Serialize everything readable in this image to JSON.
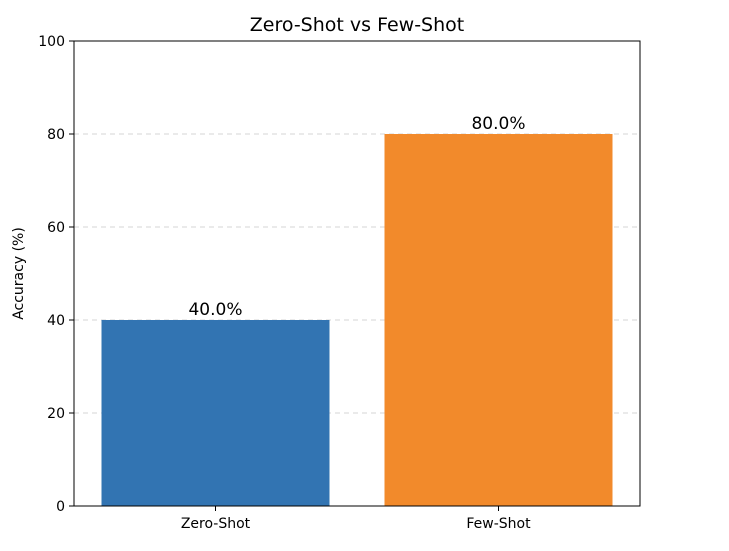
{
  "chart_data": {
    "type": "bar",
    "title": "Zero-Shot vs Few-Shot",
    "xlabel": "",
    "ylabel": "Accuracy (%)",
    "categories": [
      "Zero-Shot",
      "Few-Shot"
    ],
    "values": [
      40.0,
      80.0
    ],
    "value_labels": [
      "40.0%",
      "80.0%"
    ],
    "colors": [
      "#3274b2",
      "#f28a2b"
    ],
    "ylim": [
      0,
      100
    ],
    "yticks": [
      0,
      20,
      40,
      60,
      80,
      100
    ],
    "grid": "y-dashed"
  }
}
